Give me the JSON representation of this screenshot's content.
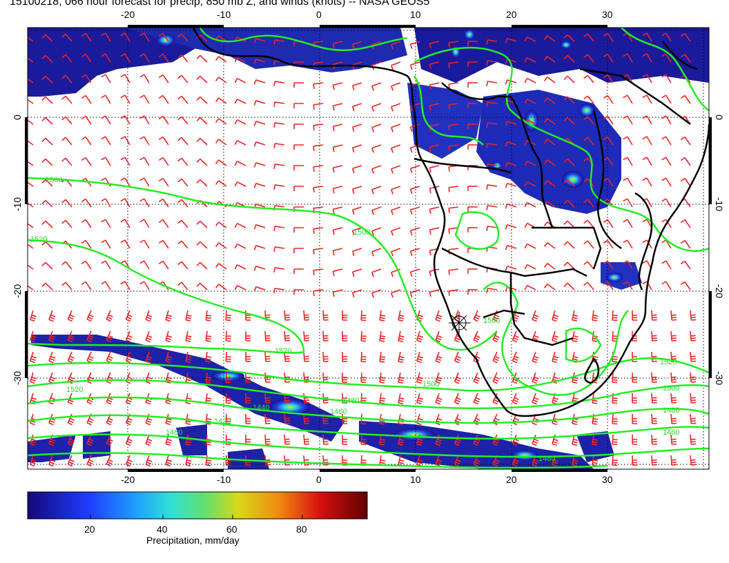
{
  "title": "15100218, 066 hour forecast for precip, 850 mb Z, and winds (knots) -- NASA GEOS5",
  "map": {
    "lon_labels_top": [
      "-20",
      "-10",
      "0",
      "10",
      "20",
      "30"
    ],
    "lon_labels_bottom": [
      "-20",
      "-10",
      "0",
      "10",
      "20",
      "30"
    ],
    "lat_labels_left": [
      "0",
      "-10",
      "-20",
      "-30"
    ],
    "lat_labels_right": [
      "0",
      "-10",
      "-20",
      "-30"
    ],
    "lon_range": [
      -30,
      40
    ],
    "lat_range": [
      -37,
      9
    ],
    "contour_color": "#22ee22",
    "barb_color": "#ee2222",
    "coast_color": "#000000",
    "contour_labels": [
      "1500",
      "1520",
      "1500",
      "1520",
      "1520",
      "1500",
      "1480",
      "1460",
      "1440",
      "1420",
      "1460",
      "1480",
      "1520",
      "1500",
      "1480",
      "1460",
      "1500"
    ]
  },
  "colorbar": {
    "ticks": [
      "20",
      "40",
      "60",
      "80"
    ],
    "label": "Precipitation, mm/day",
    "colors": [
      "#1a0a8c",
      "#2040ff",
      "#20a0ff",
      "#30e0e0",
      "#50e080",
      "#c8e020",
      "#f0a010",
      "#e02010",
      "#7a0000"
    ]
  }
}
